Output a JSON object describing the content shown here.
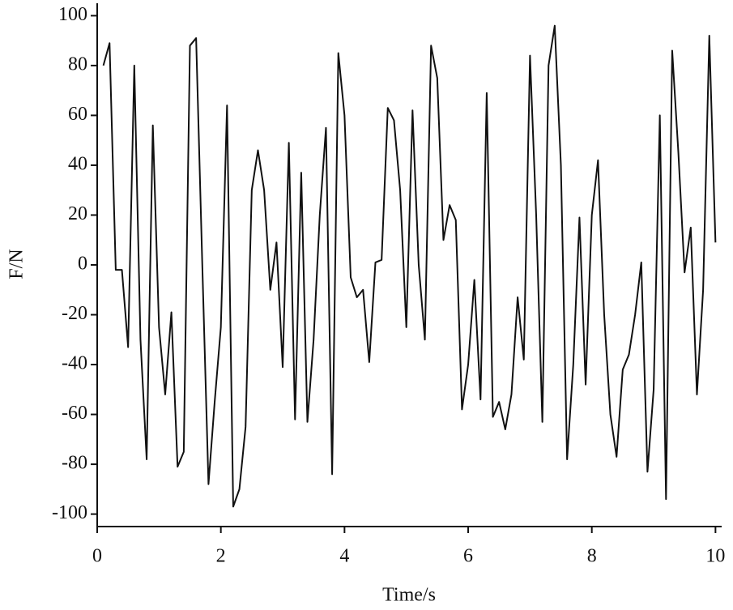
{
  "chart_data": {
    "type": "line",
    "x_label": "Time/s",
    "y_label": "F/N",
    "x": [
      0.1,
      0.2,
      0.3,
      0.4,
      0.5,
      0.6,
      0.7,
      0.8,
      0.9,
      1.0,
      1.1,
      1.2,
      1.3,
      1.4,
      1.5,
      1.6,
      1.7,
      1.8,
      1.9,
      2.0,
      2.1,
      2.2,
      2.3,
      2.4,
      2.5,
      2.6,
      2.7,
      2.8,
      2.9,
      3.0,
      3.1,
      3.2,
      3.3,
      3.4,
      3.5,
      3.6,
      3.7,
      3.8,
      3.9,
      4.0,
      4.1,
      4.2,
      4.3,
      4.4,
      4.5,
      4.6,
      4.7,
      4.8,
      4.9,
      5.0,
      5.1,
      5.2,
      5.3,
      5.4,
      5.5,
      5.6,
      5.7,
      5.8,
      5.9,
      6.0,
      6.1,
      6.2,
      6.3,
      6.4,
      6.5,
      6.6,
      6.7,
      6.8,
      6.9,
      7.0,
      7.1,
      7.2,
      7.3,
      7.4,
      7.5,
      7.6,
      7.7,
      7.8,
      7.9,
      8.0,
      8.1,
      8.2,
      8.3,
      8.4,
      8.5,
      8.6,
      8.7,
      8.8,
      8.9,
      9.0,
      9.1,
      9.2,
      9.3,
      9.4,
      9.5,
      9.6,
      9.7,
      9.8,
      9.9,
      10.0
    ],
    "values": [
      80,
      89,
      -2,
      -2,
      -33,
      80,
      -30,
      -78,
      56,
      -25,
      -52,
      -19,
      -81,
      -75,
      88,
      91,
      0,
      -88,
      -55,
      -25,
      64,
      -97,
      -90,
      -65,
      30,
      46,
      30,
      -10,
      9,
      -41,
      49,
      -62,
      37,
      -63,
      -30,
      20,
      55,
      -84,
      85,
      60,
      -5,
      -13,
      -10,
      -39,
      1,
      2,
      63,
      58,
      30,
      -25,
      62,
      0,
      -30,
      88,
      75,
      10,
      24,
      18,
      -58,
      -40,
      -6,
      -54,
      69,
      -61,
      -55,
      -66,
      -52,
      -13,
      -38,
      84,
      20,
      -63,
      80,
      96,
      40,
      -78,
      -40,
      19,
      -48,
      20,
      42,
      -20,
      -60,
      -77,
      -42,
      -36,
      -20,
      1,
      -83,
      -50,
      60,
      -94,
      86,
      45,
      -3,
      15,
      -52,
      -10,
      92,
      9
    ],
    "color": "#111111",
    "xlim": [
      0,
      10.1
    ],
    "xticks": [
      0,
      2,
      4,
      6,
      8,
      10
    ],
    "ylim": [
      -105,
      105
    ],
    "yticks": [
      -100,
      -80,
      -60,
      -40,
      -20,
      0,
      20,
      40,
      60,
      80,
      100
    ],
    "grid": false
  }
}
